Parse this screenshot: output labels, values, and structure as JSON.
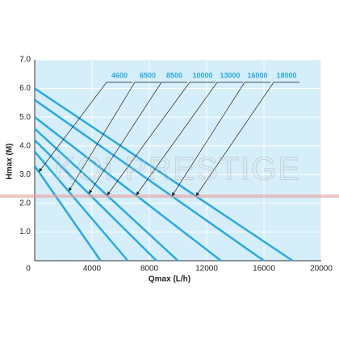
{
  "chart_data": {
    "type": "line",
    "x_label": "Qmax (L/h)",
    "y_label": "Hmax (M)",
    "watermark": "KOI PRESTIGE",
    "xlim": [
      0,
      20000
    ],
    "xticks": [
      0,
      4000,
      8000,
      12000,
      16000,
      20000
    ],
    "ylim": [
      0,
      7
    ],
    "yticks": [
      {
        "value": 1,
        "label": "1.0"
      },
      {
        "value": 2,
        "label": "2.0"
      },
      {
        "value": 3,
        "label": "3.0"
      },
      {
        "value": 4,
        "label": "4.0"
      },
      {
        "value": 5,
        "label": "5.0"
      },
      {
        "value": 6,
        "label": "6.0"
      },
      {
        "value": 7,
        "label": "7.0"
      }
    ],
    "grid": true,
    "background": "#d6eef9",
    "series": [
      {
        "name": "4600",
        "color": "#29a9e0",
        "x": [
          0,
          4600
        ],
        "values": [
          3.3,
          0
        ]
      },
      {
        "name": "6500",
        "color": "#29a9e0",
        "x": [
          0,
          6500
        ],
        "values": [
          3.8,
          0
        ]
      },
      {
        "name": "8500",
        "color": "#29a9e0",
        "x": [
          0,
          8500
        ],
        "values": [
          4.2,
          0
        ]
      },
      {
        "name": "10000",
        "color": "#29a9e0",
        "x": [
          0,
          10000
        ],
        "values": [
          4.6,
          0
        ]
      },
      {
        "name": "13000",
        "color": "#29a9e0",
        "x": [
          0,
          13000
        ],
        "values": [
          5.0,
          0
        ]
      },
      {
        "name": "16000",
        "color": "#29a9e0",
        "x": [
          0,
          16000
        ],
        "values": [
          5.6,
          0
        ]
      },
      {
        "name": "18000",
        "color": "#29a9e0",
        "x": [
          0,
          18000
        ],
        "values": [
          6.0,
          0
        ]
      }
    ]
  }
}
